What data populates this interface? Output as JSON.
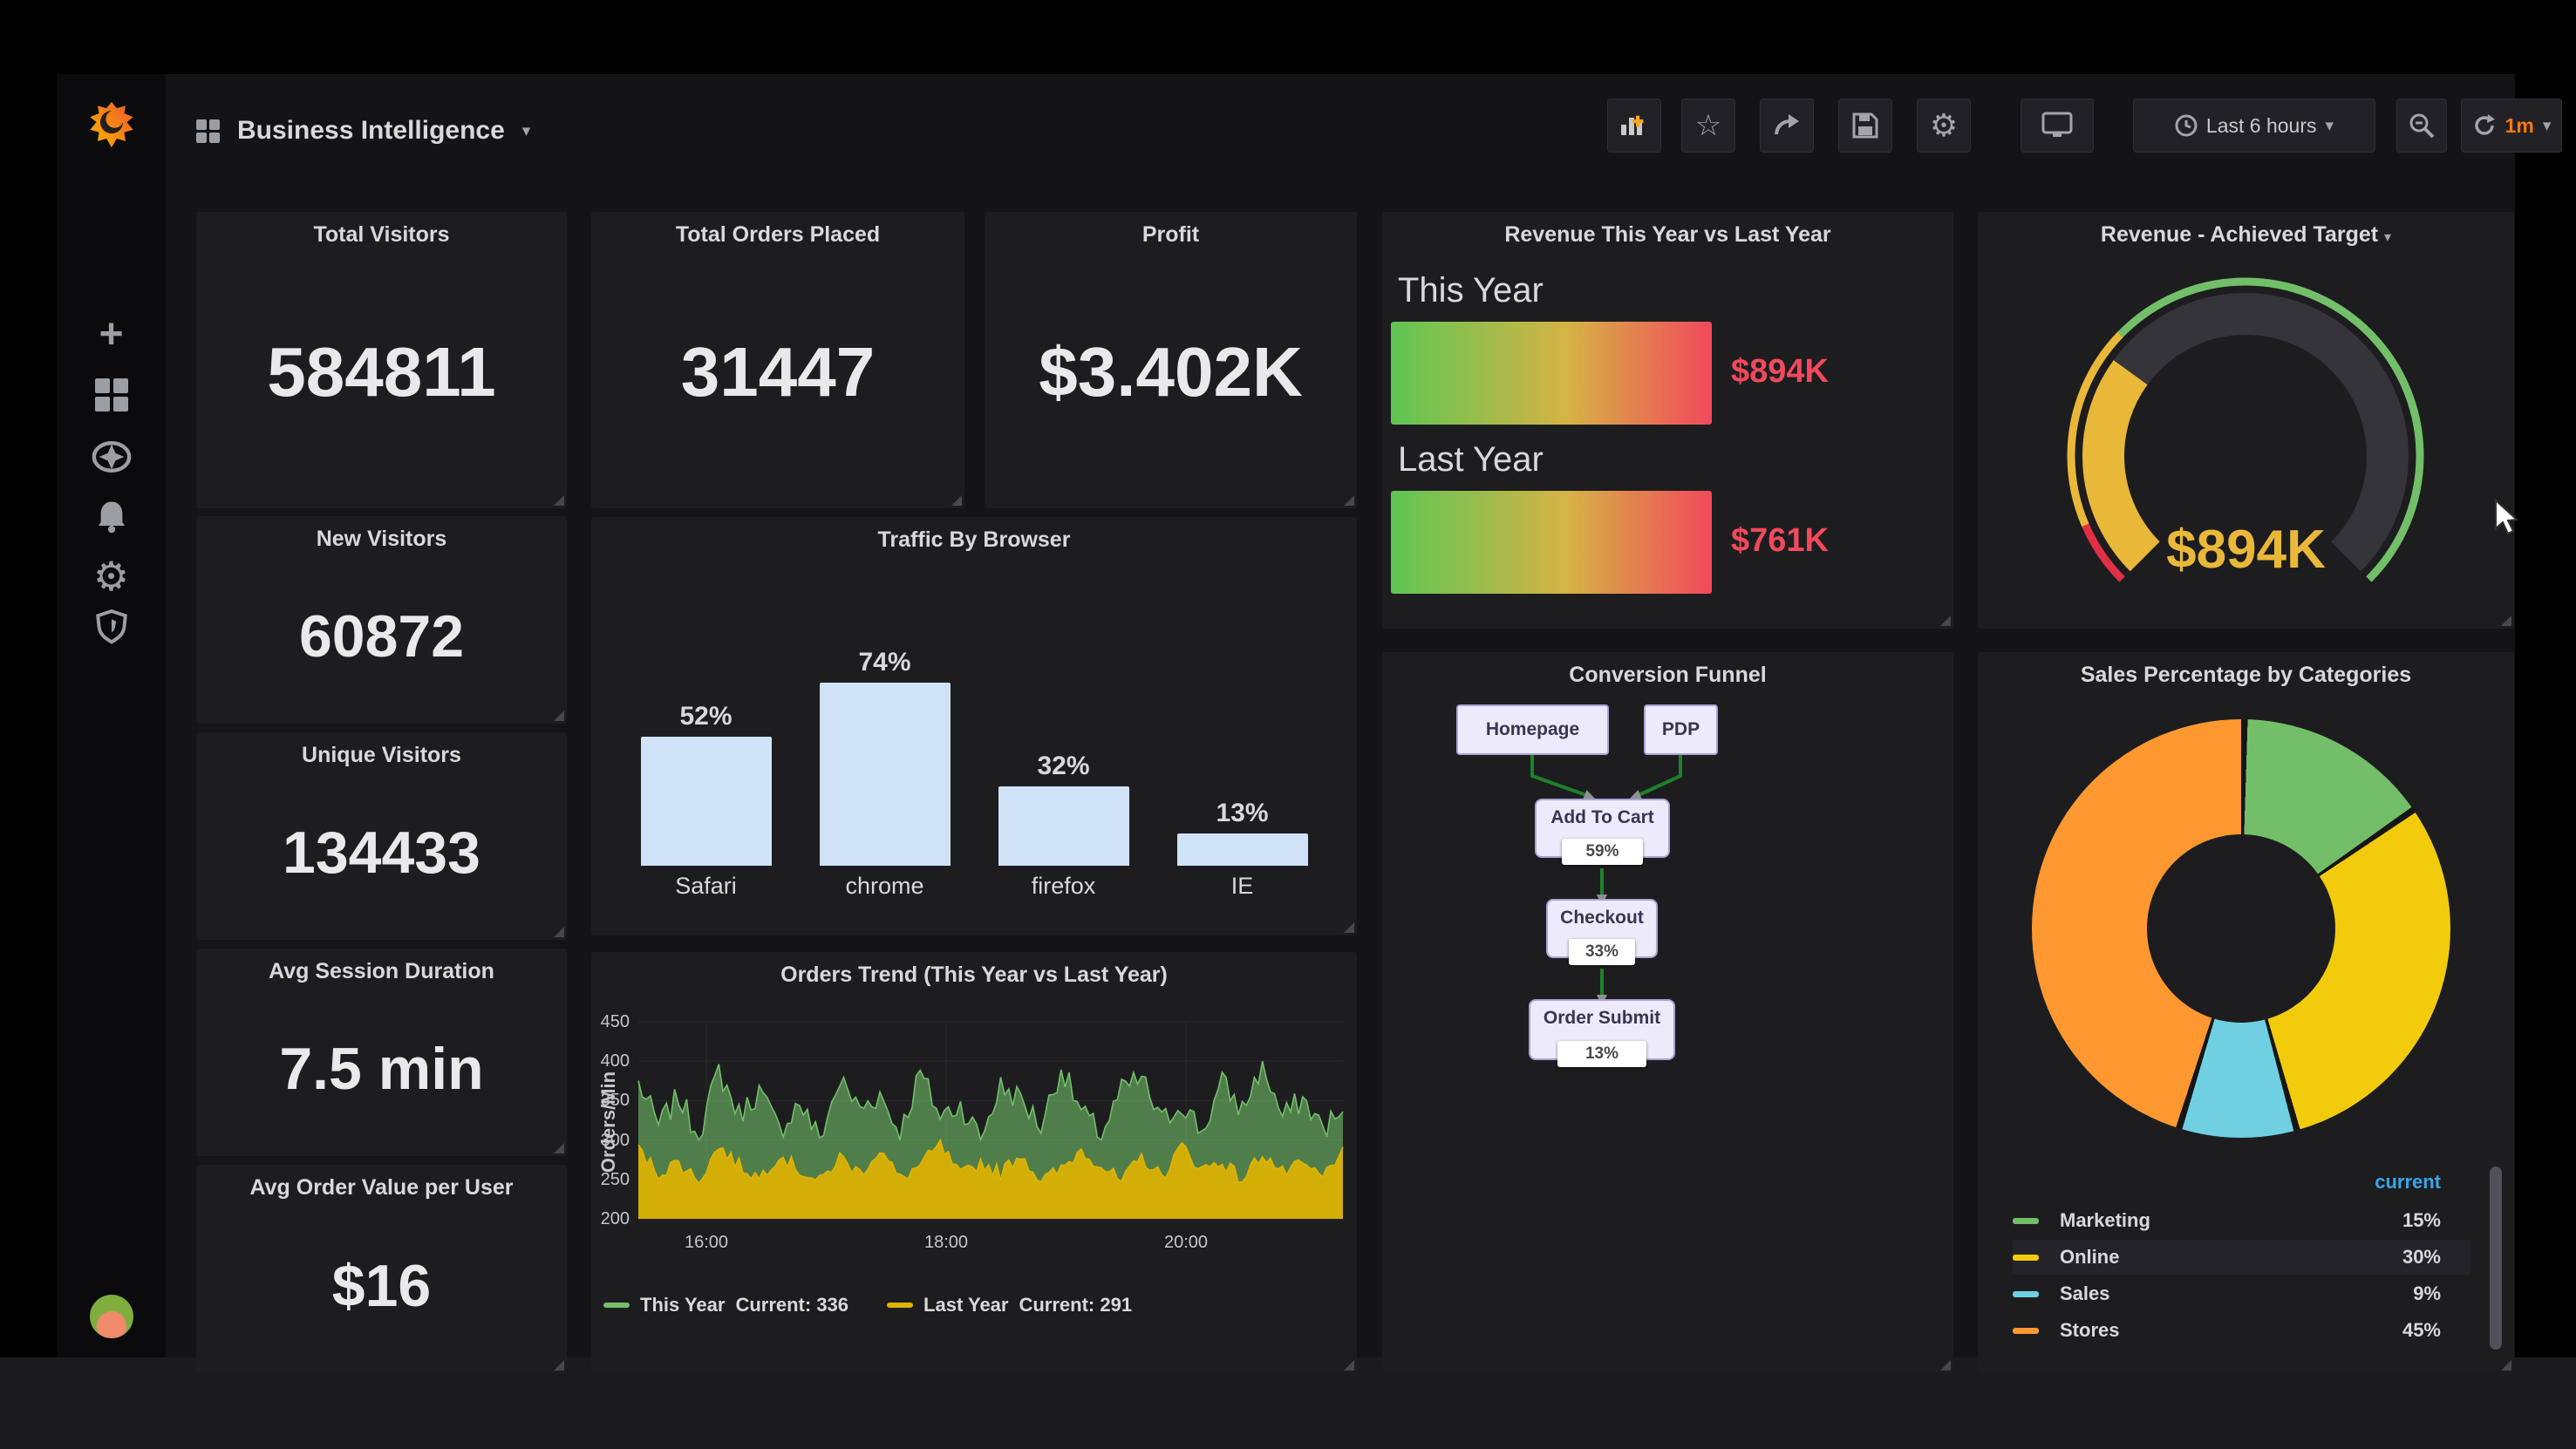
{
  "nav": {
    "title": "Business Intelligence",
    "time_range": "Last 6 hours",
    "refresh_interval": "1m"
  },
  "panels": {
    "stats": [
      {
        "title": "Total Visitors",
        "value": "584811"
      },
      {
        "title": "Total Orders Placed",
        "value": "31447"
      },
      {
        "title": "Profit",
        "value": "$3.402K"
      },
      {
        "title": "New Visitors",
        "value": "60872"
      },
      {
        "title": "Unique Visitors",
        "value": "134433"
      },
      {
        "title": "Avg Session Duration",
        "value": "7.5 min"
      },
      {
        "title": "Avg Order Value per User",
        "value": "$16"
      }
    ],
    "revenue": {
      "title": "Revenue This Year vs Last Year",
      "rows": [
        {
          "label": "This Year",
          "value": "$894K"
        },
        {
          "label": "Last Year",
          "value": "$761K"
        }
      ]
    },
    "gauge": {
      "title": "Revenue - Achieved Target",
      "value": "$894K"
    },
    "traffic": {
      "title": "Traffic By Browser"
    },
    "trend": {
      "title": "Orders Trend (This Year vs Last Year)",
      "ylabel": "Orders/Min",
      "legend": [
        {
          "label": "This Year",
          "current": "Current: 336"
        },
        {
          "label": "Last Year",
          "current": "Current: 291"
        }
      ]
    },
    "funnel": {
      "title": "Conversion Funnel",
      "nodes": [
        {
          "label": "Homepage",
          "pct": ""
        },
        {
          "label": "PDP",
          "pct": ""
        },
        {
          "label": "Add To Cart",
          "pct": "59%"
        },
        {
          "label": "Checkout",
          "pct": "33%"
        },
        {
          "label": "Order Submit",
          "pct": "13%"
        }
      ]
    },
    "donut": {
      "title": "Sales Percentage by Categories",
      "header": "current",
      "rows": [
        {
          "label": "Marketing",
          "value": "15%"
        },
        {
          "label": "Online",
          "value": "30%"
        },
        {
          "label": "Sales",
          "value": "9%"
        },
        {
          "label": "Stores",
          "value": "45%"
        }
      ]
    }
  },
  "chart_data": [
    {
      "id": "traffic",
      "type": "bar",
      "title": "Traffic By Browser",
      "categories": [
        "Safari",
        "chrome",
        "firefox",
        "IE"
      ],
      "values": [
        52,
        74,
        32,
        13
      ],
      "unit": "%",
      "bar_color": "#d0e2f8",
      "ylim": [
        0,
        80
      ],
      "grid": false,
      "value_labels": [
        "52%",
        "74%",
        "32%",
        "13%"
      ]
    },
    {
      "id": "orders_trend",
      "type": "line",
      "title": "Orders Trend (This Year vs Last Year)",
      "ylabel": "Orders/Min",
      "ylim": [
        200,
        450
      ],
      "yticks": [
        200,
        250,
        300,
        350,
        400,
        450
      ],
      "xticks": [
        "16:00",
        "18:00",
        "20:00"
      ],
      "grid": true,
      "legend_position": "bottom",
      "series": [
        {
          "name": "This Year",
          "color": "#73bf69",
          "fill_opacity": 0.6,
          "current": 336,
          "range": [
            300,
            400
          ],
          "base": [
            372,
            318,
            355,
            305,
            388,
            332,
            362,
            312,
            348,
            301,
            375,
            340,
            358,
            308,
            385,
            330,
            345,
            303,
            368,
            352,
            318,
            392,
            335,
            306,
            362,
            378,
            322,
            348,
            310,
            372,
            338,
            396,
            328,
            352,
            315,
            336
          ]
        },
        {
          "name": "Last Year",
          "color": "#e0b400",
          "fill_opacity": 0.9,
          "current": 291,
          "range": [
            245,
            300
          ],
          "base": [
            288,
            258,
            272,
            248,
            292,
            268,
            252,
            282,
            262,
            246,
            278,
            258,
            288,
            250,
            268,
            293,
            254,
            272,
            258,
            283,
            248,
            262,
            288,
            268,
            246,
            278,
            253,
            292,
            263,
            273,
            249,
            284,
            258,
            268,
            252,
            291
          ]
        }
      ]
    },
    {
      "id": "revenue_bullets",
      "type": "bar",
      "title": "Revenue This Year vs Last Year",
      "categories": [
        "This Year",
        "Last Year"
      ],
      "values": [
        894,
        761
      ],
      "unit": "$K",
      "labels": [
        "$894K",
        "$761K"
      ],
      "gradient": [
        "#5ec653",
        "#d6b345",
        "#f2495c"
      ],
      "label_color": "#f2495c"
    },
    {
      "id": "revenue_gauge",
      "type": "gauge",
      "title": "Revenue - Achieved Target",
      "value": 894,
      "display": "$894K",
      "percent": 30,
      "value_color": "#eab839",
      "track_color": "#34343a",
      "thresholds": [
        {
          "color": "#e02f44",
          "to_pct": 8
        },
        {
          "color": "#eab839",
          "to_pct": 33
        },
        {
          "color": "#73bf69",
          "to_pct": 100
        }
      ]
    },
    {
      "id": "conversion_funnel",
      "type": "funnel",
      "title": "Conversion Funnel",
      "stages": [
        {
          "label": "Homepage"
        },
        {
          "label": "PDP"
        },
        {
          "label": "Add To Cart",
          "pct": 59
        },
        {
          "label": "Checkout",
          "pct": 33
        },
        {
          "label": "Order Submit",
          "pct": 13
        }
      ]
    },
    {
      "id": "sales_categories",
      "type": "pie",
      "donut": true,
      "title": "Sales Percentage by Categories",
      "legend_header": "current",
      "categories": [
        "Marketing",
        "Online",
        "Sales",
        "Stores"
      ],
      "values": [
        15,
        30,
        9,
        45
      ],
      "colors": [
        "#73bf69",
        "#f2cc0c",
        "#6ed0e0",
        "#ff9830"
      ]
    }
  ],
  "colors": {
    "panel_bg": "#1d1d20",
    "page_bg": "#141416",
    "green": "#73bf69",
    "yellow": "#e0b400",
    "donut_yellow": "#f2cc0c",
    "cyan": "#6ed0e0",
    "orange": "#ff9830",
    "red": "#f2495c",
    "gauge_yellow": "#eab839",
    "bar_blue": "#d0e2f8",
    "legend_blue": "#35a7e8",
    "refresh_orange": "#ff780a"
  }
}
